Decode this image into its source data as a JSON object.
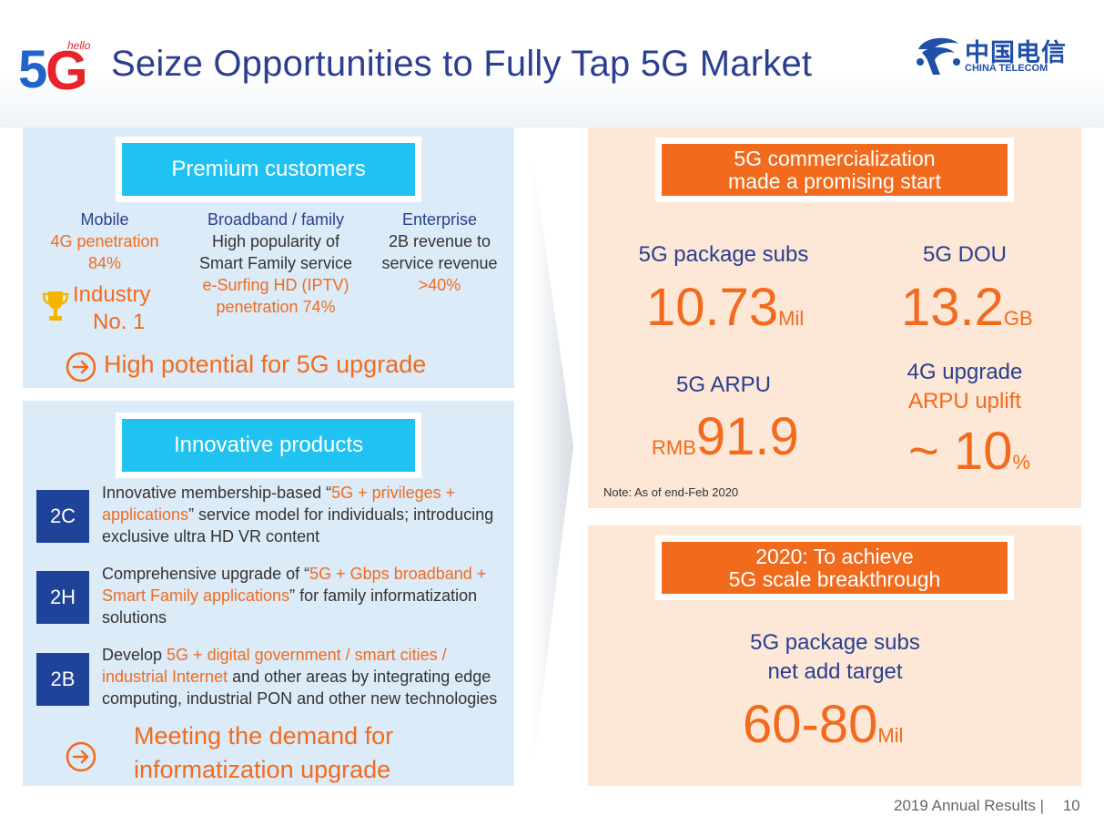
{
  "header": {
    "logo_5g": "5G",
    "logo_hello": "hello",
    "title": "Seize Opportunities to Fully Tap 5G Market",
    "telecom_cn": "中国电信",
    "telecom_en": "CHINA TELECOM"
  },
  "premium": {
    "title": "Premium customers",
    "mobile": {
      "head": "Mobile",
      "l1": "4G penetration",
      "l2": "84%"
    },
    "industry_l1": "Industry",
    "industry_l2": "No. 1",
    "broadband": {
      "head": "Broadband / family",
      "l1": "High popularity of",
      "l2": "Smart Family service",
      "l3": "e-Surfing HD (IPTV)",
      "l4": "penetration 74%"
    },
    "enterprise": {
      "head": "Enterprise",
      "l1": "2B revenue to",
      "l2": "service revenue",
      "l3": ">40%"
    },
    "potential": "High potential for 5G upgrade"
  },
  "innovative": {
    "title": "Innovative products",
    "items": [
      {
        "tag": "2C",
        "a": "Innovative membership-based “",
        "b": "5G + privileges +",
        "c": "applications",
        "d": "” service model for individuals; introducing",
        "e": "exclusive ultra HD VR content"
      },
      {
        "tag": "2H",
        "a": "Comprehensive upgrade of “",
        "b": "5G + Gbps broadband +",
        "c": "Smart Family applications",
        "d": "” for family informatization",
        "e": "solutions"
      },
      {
        "tag": "2B",
        "a": "Develop ",
        "b": "5G + digital government / smart cities /",
        "c": "industrial Internet",
        "d": " and other areas by integrating edge",
        "e": "computing, industrial PON and other new technologies"
      }
    ],
    "meeting_l1": "Meeting the demand for",
    "meeting_l2": "informatization upgrade"
  },
  "commercial": {
    "title_l1": "5G commercialization",
    "title_l2": "made a promising start",
    "pkg_label": "5G package subs",
    "pkg_value": "10.73",
    "pkg_unit": "Mil",
    "dou_label": "5G DOU",
    "dou_value": "13.2",
    "dou_unit": "GB",
    "arpu_label": "5G ARPU",
    "arpu_prefix": "RMB",
    "arpu_value": "91.9",
    "upg_label_l1": "4G upgrade",
    "upg_label_l2": "ARPU uplift",
    "upg_value": "~ 10",
    "upg_unit": "%",
    "note": "Note: As of end-Feb 2020"
  },
  "target": {
    "title_l1": "2020: To achieve",
    "title_l2": "5G scale breakthrough",
    "label_l1": "5G package subs",
    "label_l2": "net add target",
    "value": "60-80",
    "unit": "Mil"
  },
  "footer": {
    "text": "2019 Annual Results |",
    "page": "10"
  },
  "colors": {
    "navy": "#2a3f8f",
    "orange": "#f26b1d",
    "cyan": "#1fc2f1",
    "tag_blue": "#1f4399",
    "panel_blue": "#dcebf8",
    "panel_peach": "#fde7d7"
  }
}
